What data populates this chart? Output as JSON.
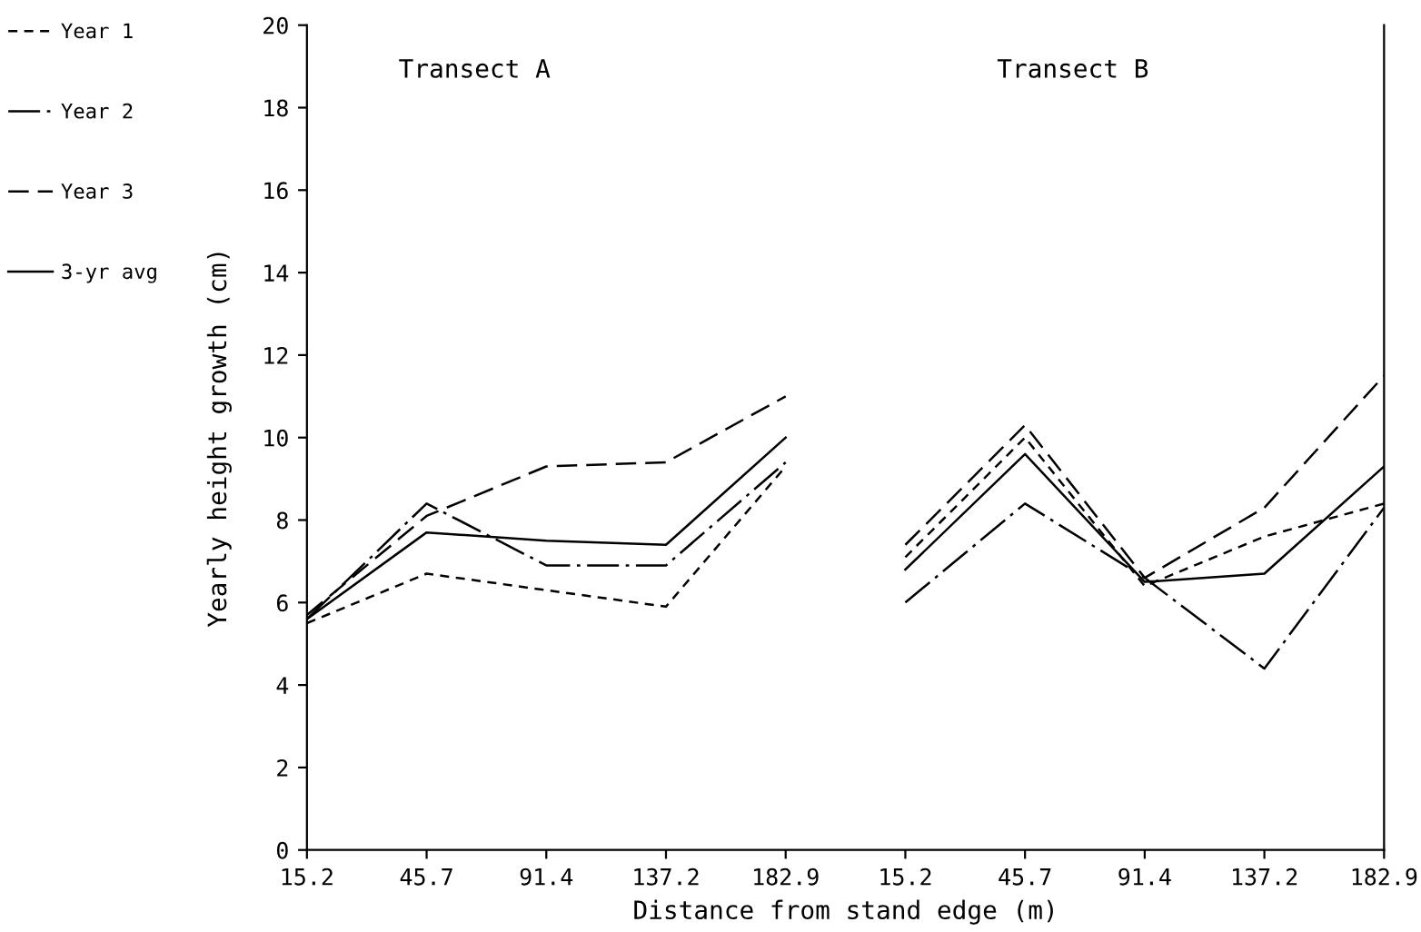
{
  "chart_data": {
    "type": "line",
    "xlabel": "Distance from stand edge (m)",
    "ylabel": "Yearly height growth (cm)",
    "annotations": [
      "Transect A",
      "Transect B"
    ],
    "categories": [
      "15.2",
      "45.7",
      "91.4",
      "137.2",
      "182.9",
      "15.2",
      "45.7",
      "91.4",
      "137.2",
      "182.9"
    ],
    "ylim": [
      0,
      20
    ],
    "yticks": [
      0,
      2,
      4,
      6,
      8,
      10,
      12,
      14,
      16,
      18,
      20
    ],
    "grid": false,
    "legend": "left",
    "marker": "none",
    "series": [
      {
        "name": "Year 1",
        "color": "#000000",
        "line_style": "dashed",
        "values": [
          5.5,
          6.7,
          6.3,
          5.9,
          9.3,
          null,
          null,
          null,
          null,
          null
        ]
      },
      {
        "name": "Year 2",
        "color": "#000000",
        "line_style": "dashdot",
        "values": [
          5.6,
          8.4,
          6.9,
          6.9,
          9.4,
          null,
          null,
          null,
          null,
          null
        ]
      },
      {
        "name": "Year 3",
        "color": "#000000",
        "line_style": "longdash",
        "values": [
          5.7,
          8.1,
          9.3,
          9.4,
          11.0,
          null,
          null,
          null,
          null,
          null
        ]
      },
      {
        "name": "3-yr avg",
        "color": "#000000",
        "line_style": "solid",
        "values": [
          5.6,
          7.7,
          7.5,
          7.4,
          10.0,
          null,
          null,
          null,
          null,
          null
        ]
      },
      {
        "color": "#000000",
        "line_style": "dashed",
        "values": [
          null,
          null,
          null,
          null,
          null,
          7.1,
          10.0,
          6.4,
          7.6,
          8.4
        ]
      },
      {
        "color": "#000000",
        "line_style": "dashdot",
        "values": [
          null,
          null,
          null,
          null,
          null,
          6.0,
          8.4,
          6.6,
          4.4,
          8.3
        ]
      },
      {
        "color": "#000000",
        "line_style": "longdash",
        "values": [
          null,
          null,
          null,
          null,
          null,
          7.4,
          10.3,
          6.6,
          8.3,
          11.5
        ]
      },
      {
        "color": "#000000",
        "line_style": "solid",
        "values": [
          null,
          null,
          null,
          null,
          null,
          6.8,
          9.6,
          6.5,
          6.7,
          9.3
        ]
      }
    ]
  }
}
